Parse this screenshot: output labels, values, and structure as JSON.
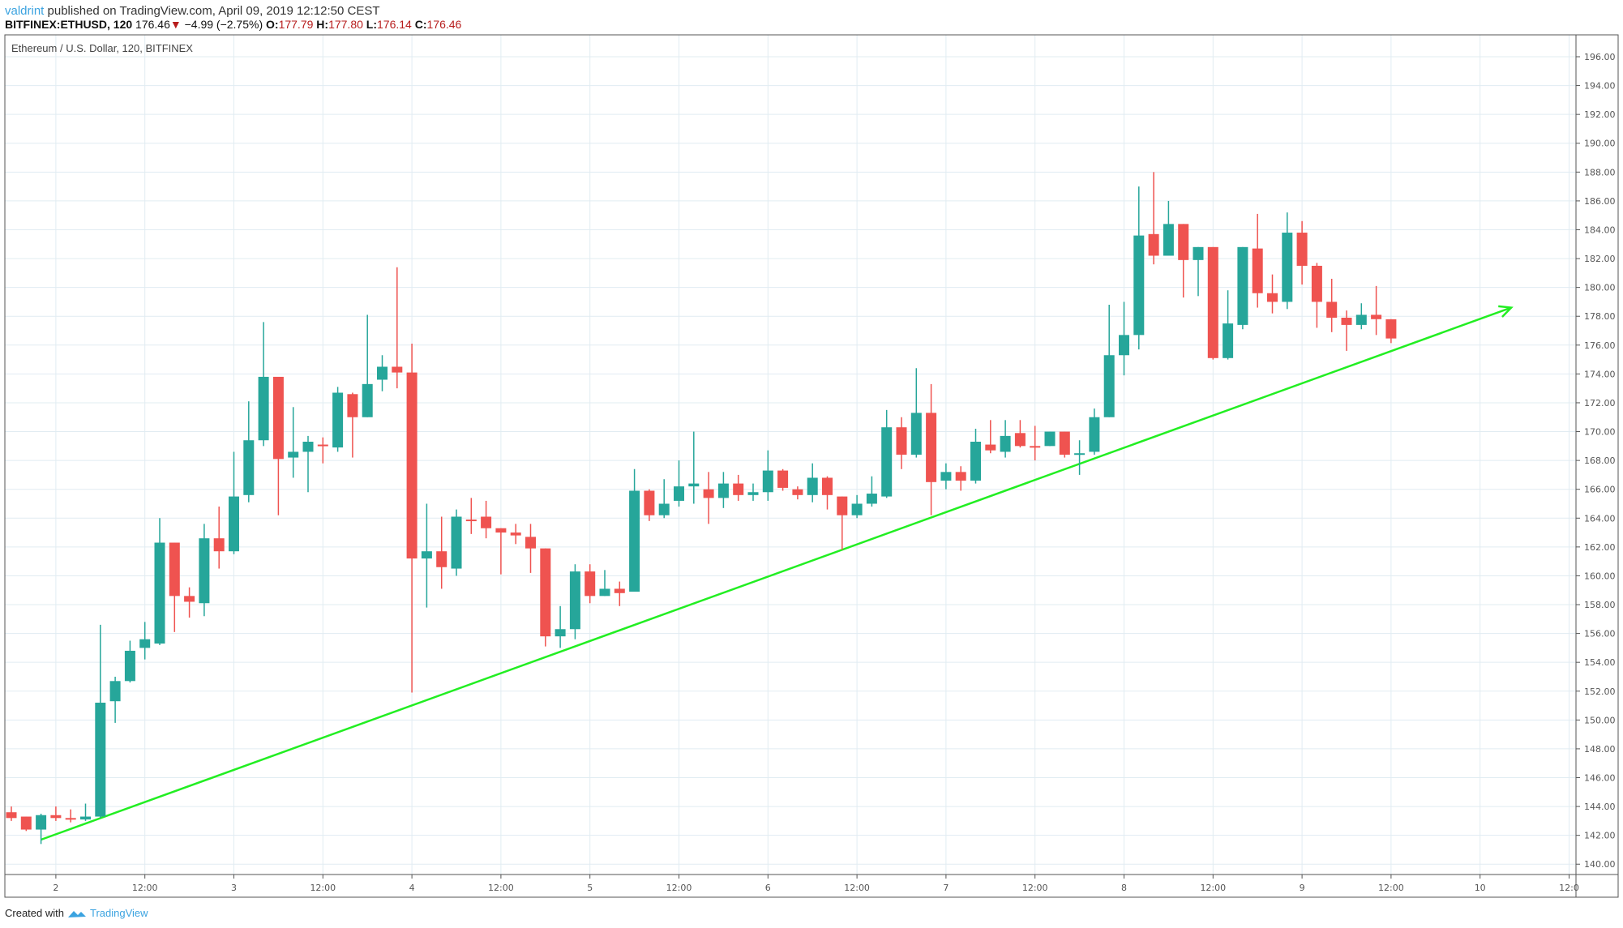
{
  "header": {
    "user": "valdrint",
    "published": "published on TradingView.com, April 09, 2019 12:12:50 CEST",
    "symbol": "BITFINEX:ETHUSD, 120",
    "last": "176.46",
    "change": "−4.99 (−2.75%)",
    "o_label": "O:",
    "o": "177.79",
    "h_label": "H:",
    "h": "177.80",
    "l_label": "L:",
    "l": "176.14",
    "c_label": "C:",
    "c": "176.46"
  },
  "footer": {
    "created_with": "Created with",
    "brand": "TradingView"
  },
  "colors": {
    "up": "#26a69a",
    "down": "#ef5350",
    "trendline": "#22ee22",
    "grid": "#e1ecf2"
  },
  "chart_data": {
    "type": "candlestick",
    "title": "Ethereum / U.S. Dollar, 120, BITFINEX",
    "ylim": [
      139,
      197
    ],
    "y_ticks": [
      "140.00",
      "142.00",
      "144.00",
      "146.00",
      "148.00",
      "150.00",
      "152.00",
      "154.00",
      "156.00",
      "158.00",
      "160.00",
      "162.00",
      "164.00",
      "166.00",
      "168.00",
      "170.00",
      "172.00",
      "174.00",
      "176.00",
      "178.00",
      "180.00",
      "182.00",
      "184.00",
      "186.00",
      "188.00",
      "190.00",
      "192.00",
      "194.00",
      "196.00"
    ],
    "x_ticks": [
      {
        "label": "2",
        "bar": 3
      },
      {
        "label": "12:00",
        "bar": 9
      },
      {
        "label": "3",
        "bar": 15
      },
      {
        "label": "12:00",
        "bar": 21
      },
      {
        "label": "4",
        "bar": 27
      },
      {
        "label": "12:00",
        "bar": 33
      },
      {
        "label": "5",
        "bar": 39
      },
      {
        "label": "12:00",
        "bar": 45
      },
      {
        "label": "6",
        "bar": 51
      },
      {
        "label": "12:00",
        "bar": 57
      },
      {
        "label": "7",
        "bar": 63
      },
      {
        "label": "12:00",
        "bar": 69
      },
      {
        "label": "8",
        "bar": 75
      },
      {
        "label": "12:00",
        "bar": 81
      },
      {
        "label": "9",
        "bar": 87
      },
      {
        "label": "12:00",
        "bar": 93
      },
      {
        "label": "10",
        "bar": 99
      },
      {
        "label": "12:0",
        "bar": 105
      }
    ],
    "ohlc": [
      [
        143.6,
        144.0,
        143.0,
        143.2
      ],
      [
        143.3,
        143.3,
        142.3,
        142.4
      ],
      [
        142.4,
        143.5,
        141.4,
        143.4
      ],
      [
        143.4,
        144.0,
        143.0,
        143.2
      ],
      [
        143.2,
        143.8,
        142.9,
        143.1
      ],
      [
        143.1,
        144.2,
        143.0,
        143.3
      ],
      [
        143.3,
        156.6,
        143.2,
        151.2
      ],
      [
        151.3,
        153.0,
        149.8,
        152.7
      ],
      [
        152.7,
        155.5,
        152.6,
        154.8
      ],
      [
        155.0,
        156.8,
        154.2,
        155.6
      ],
      [
        155.3,
        164.0,
        155.2,
        162.3
      ],
      [
        162.3,
        162.3,
        156.1,
        158.6
      ],
      [
        158.6,
        159.2,
        157.1,
        158.2
      ],
      [
        158.1,
        163.6,
        157.2,
        162.6
      ],
      [
        162.6,
        164.8,
        160.5,
        161.7
      ],
      [
        161.7,
        168.6,
        161.5,
        165.5
      ],
      [
        165.6,
        172.1,
        165.1,
        169.4
      ],
      [
        169.4,
        177.6,
        169.0,
        173.8
      ],
      [
        173.8,
        173.8,
        164.2,
        168.1
      ],
      [
        168.2,
        171.7,
        166.8,
        168.6
      ],
      [
        168.6,
        169.7,
        165.8,
        169.3
      ],
      [
        169.1,
        169.6,
        167.8,
        169.0
      ],
      [
        168.9,
        173.1,
        168.6,
        172.7
      ],
      [
        172.6,
        172.7,
        168.2,
        171.0
      ],
      [
        171.0,
        178.1,
        171.0,
        173.3
      ],
      [
        173.6,
        175.3,
        172.8,
        174.5
      ],
      [
        174.5,
        181.4,
        173.0,
        174.1
      ],
      [
        174.1,
        176.1,
        151.9,
        161.2
      ],
      [
        161.2,
        165.0,
        157.8,
        161.7
      ],
      [
        161.7,
        164.1,
        159.1,
        160.6
      ],
      [
        160.5,
        164.6,
        160.0,
        164.1
      ],
      [
        163.9,
        165.4,
        162.9,
        163.8
      ],
      [
        164.1,
        165.2,
        162.6,
        163.3
      ],
      [
        163.3,
        163.3,
        160.1,
        163.0
      ],
      [
        163.0,
        163.6,
        162.2,
        162.8
      ],
      [
        162.7,
        163.6,
        160.2,
        161.9
      ],
      [
        161.9,
        161.9,
        155.1,
        155.8
      ],
      [
        155.8,
        157.9,
        155.0,
        156.3
      ],
      [
        156.3,
        160.8,
        155.6,
        160.3
      ],
      [
        160.3,
        160.8,
        158.1,
        158.6
      ],
      [
        158.6,
        160.4,
        158.6,
        159.1
      ],
      [
        159.1,
        159.6,
        157.9,
        158.8
      ],
      [
        158.9,
        167.4,
        158.9,
        165.9
      ],
      [
        165.9,
        166.0,
        163.8,
        164.2
      ],
      [
        164.2,
        166.7,
        164.0,
        165.0
      ],
      [
        165.2,
        168.0,
        164.8,
        166.2
      ],
      [
        166.2,
        170.0,
        165.0,
        166.4
      ],
      [
        166.0,
        167.2,
        163.6,
        165.4
      ],
      [
        165.4,
        167.2,
        164.7,
        166.4
      ],
      [
        166.4,
        167.0,
        165.2,
        165.6
      ],
      [
        165.6,
        166.4,
        165.2,
        165.8
      ],
      [
        165.8,
        168.7,
        165.2,
        167.3
      ],
      [
        167.3,
        167.4,
        165.9,
        166.1
      ],
      [
        166.0,
        166.2,
        165.3,
        165.6
      ],
      [
        165.6,
        167.8,
        165.1,
        166.8
      ],
      [
        166.8,
        166.9,
        164.6,
        165.6
      ],
      [
        165.5,
        165.5,
        161.8,
        164.2
      ],
      [
        164.2,
        165.6,
        164.0,
        165.0
      ],
      [
        165.0,
        166.9,
        164.8,
        165.7
      ],
      [
        165.5,
        171.5,
        165.4,
        170.3
      ],
      [
        170.3,
        171.0,
        167.4,
        168.4
      ],
      [
        168.4,
        174.4,
        168.2,
        171.3
      ],
      [
        171.3,
        173.3,
        164.2,
        166.5
      ],
      [
        166.6,
        167.8,
        166.0,
        167.2
      ],
      [
        167.2,
        167.6,
        165.9,
        166.6
      ],
      [
        166.6,
        170.2,
        166.4,
        169.3
      ],
      [
        169.1,
        170.8,
        168.5,
        168.7
      ],
      [
        168.6,
        170.8,
        168.2,
        169.7
      ],
      [
        169.9,
        170.8,
        168.9,
        169.0
      ],
      [
        169.0,
        170.4,
        168.0,
        168.9
      ],
      [
        169.0,
        170.0,
        169.0,
        170.0
      ],
      [
        170.0,
        170.0,
        168.2,
        168.4
      ],
      [
        168.4,
        169.4,
        167.0,
        168.5
      ],
      [
        168.6,
        171.6,
        168.4,
        171.0
      ],
      [
        171.0,
        178.8,
        171.0,
        175.3
      ],
      [
        175.3,
        179.0,
        173.9,
        176.7
      ],
      [
        176.7,
        187.0,
        175.7,
        183.6
      ],
      [
        183.7,
        188.0,
        181.6,
        182.2
      ],
      [
        182.2,
        186.0,
        182.2,
        184.4
      ],
      [
        184.4,
        184.4,
        179.3,
        181.9
      ],
      [
        181.9,
        182.8,
        179.4,
        182.8
      ],
      [
        182.8,
        182.8,
        175.0,
        175.1
      ],
      [
        175.1,
        179.8,
        175.0,
        177.5
      ],
      [
        177.4,
        182.8,
        177.1,
        182.8
      ],
      [
        182.7,
        185.1,
        178.6,
        179.6
      ],
      [
        179.6,
        180.9,
        178.2,
        179.0
      ],
      [
        179.0,
        185.2,
        178.5,
        183.8
      ],
      [
        183.8,
        184.6,
        180.2,
        181.5
      ],
      [
        181.5,
        181.7,
        177.2,
        179.0
      ],
      [
        179.0,
        180.6,
        176.9,
        177.9
      ],
      [
        177.9,
        178.4,
        175.6,
        177.4
      ],
      [
        177.4,
        178.9,
        177.1,
        178.1
      ],
      [
        178.1,
        180.1,
        176.7,
        177.8
      ],
      [
        177.79,
        177.8,
        176.14,
        176.46
      ]
    ],
    "trendline": {
      "from": {
        "bar": 2,
        "price": 141.7
      },
      "to": {
        "bar": 101.1,
        "price": 178.6
      },
      "arrow": true
    }
  }
}
